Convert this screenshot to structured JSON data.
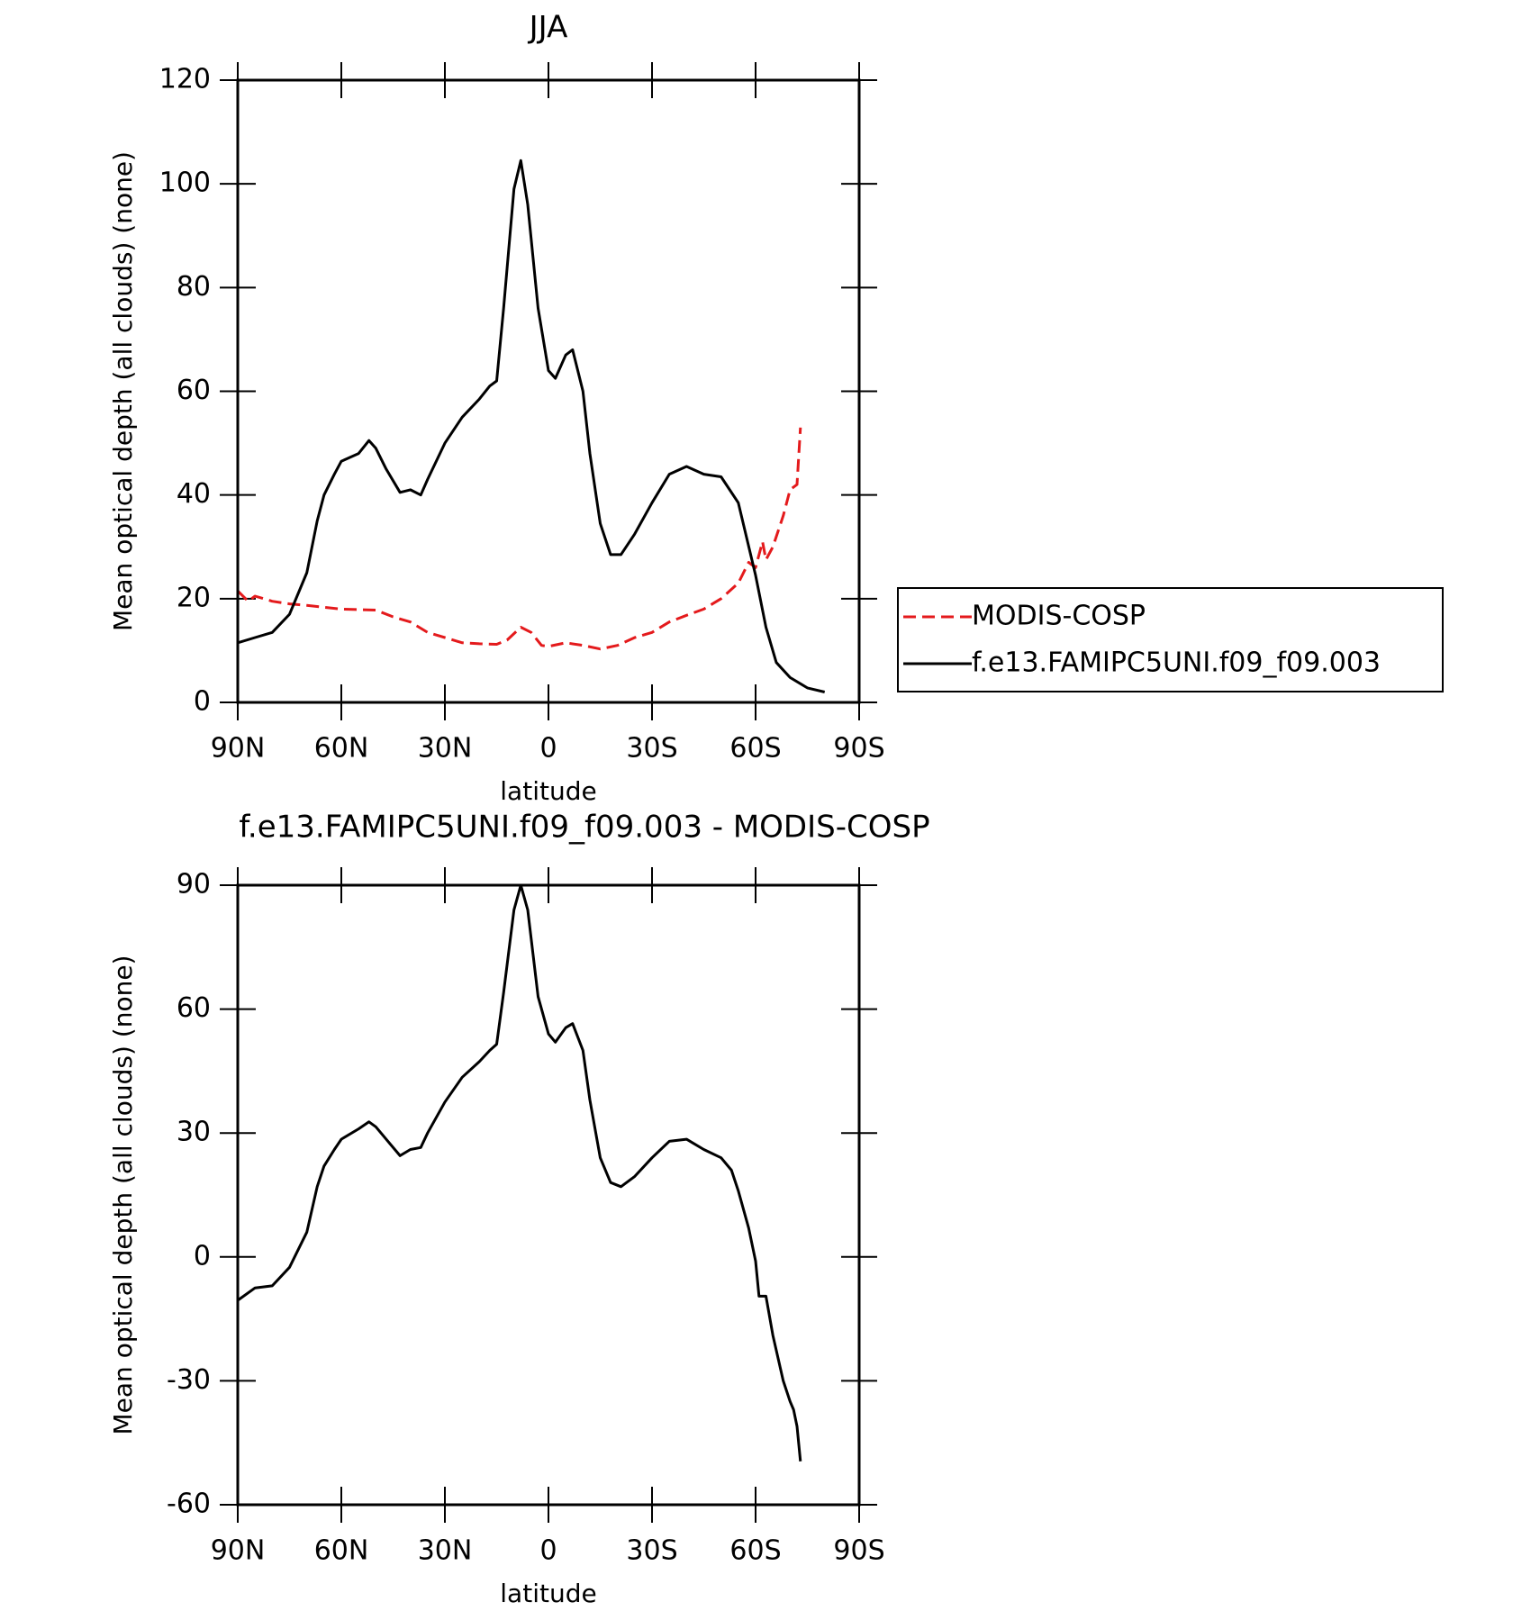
{
  "chart_data": [
    {
      "type": "line",
      "title": "JJA",
      "xlabel": "latitude",
      "ylabel": "Mean optical depth (all clouds) (none)",
      "xlim": [
        90,
        -90
      ],
      "xticks": [
        {
          "value": 90,
          "label": "90N"
        },
        {
          "value": 60,
          "label": "60N"
        },
        {
          "value": 30,
          "label": "30N"
        },
        0,
        {
          "value": -30,
          "label": "30S"
        },
        {
          "value": -60,
          "label": "60S"
        },
        {
          "value": -90,
          "label": "90S"
        }
      ],
      "ylim": [
        0,
        120
      ],
      "yticks": [
        0,
        20,
        40,
        60,
        80,
        100,
        120
      ],
      "legend": "right",
      "series": [
        {
          "name": "MODIS-COSP",
          "color": "#e41a1c",
          "linestyle": "dashed",
          "x": [
            90,
            87,
            85,
            80,
            75,
            70,
            60,
            50,
            45,
            40,
            35,
            30,
            25,
            20,
            15,
            12,
            8,
            5,
            2,
            0,
            -5,
            -10,
            -15,
            -20,
            -25,
            -30,
            -35,
            -40,
            -45,
            -50,
            -55,
            -58,
            -60,
            -62,
            -63,
            -65,
            -68,
            -70,
            -72,
            -73
          ],
          "values": [
            21.5,
            19.5,
            20.5,
            19.5,
            19,
            18.7,
            18,
            17.8,
            16.5,
            15.5,
            13.5,
            12.5,
            11.5,
            11.3,
            11.2,
            12,
            14.5,
            13.5,
            11,
            10.8,
            11.5,
            11,
            10.3,
            11,
            12.5,
            13.5,
            15.5,
            16.8,
            18,
            20,
            23,
            27,
            26,
            31,
            27.5,
            30,
            36,
            41,
            42,
            53
          ]
        },
        {
          "name": "f.e13.FAMIPC5UNI.f09_f09.003",
          "color": "#000000",
          "linestyle": "solid",
          "x": [
            90,
            85,
            80,
            75,
            70,
            67,
            65,
            62,
            60,
            55,
            52,
            50,
            47,
            43,
            40,
            37,
            35,
            30,
            25,
            20,
            17,
            15,
            13,
            10,
            8,
            6,
            3,
            0,
            -2,
            -5,
            -7,
            -10,
            -12,
            -15,
            -18,
            -21,
            -25,
            -30,
            -35,
            -40,
            -45,
            -50,
            -55,
            -60,
            -63,
            -66,
            -70,
            -75,
            -80
          ],
          "values": [
            11.5,
            12.5,
            13.5,
            17,
            25,
            35,
            40,
            44,
            46.5,
            48,
            50.5,
            49,
            45,
            40.5,
            41,
            40,
            43,
            50,
            55,
            58.5,
            61,
            62,
            76,
            99,
            104.5,
            96,
            76,
            64,
            62.5,
            67,
            68,
            60,
            48,
            34.5,
            28.5,
            28.5,
            32.5,
            38.5,
            44,
            45.5,
            44,
            43.5,
            38.5,
            24.5,
            14.5,
            7.7,
            4.8,
            2.8,
            2
          ]
        }
      ]
    },
    {
      "type": "line",
      "title": "f.e13.FAMIPC5UNI.f09_f09.003 - MODIS-COSP",
      "xlabel": "latitude",
      "ylabel": "Mean optical depth (all clouds) (none)",
      "xlim": [
        90,
        -90
      ],
      "xticks": [
        {
          "value": 90,
          "label": "90N"
        },
        {
          "value": 60,
          "label": "60N"
        },
        {
          "value": 30,
          "label": "30N"
        },
        0,
        {
          "value": -30,
          "label": "30S"
        },
        {
          "value": -60,
          "label": "60S"
        },
        {
          "value": -90,
          "label": "90S"
        }
      ],
      "ylim": [
        -60,
        90
      ],
      "yticks": [
        -60,
        -30,
        0,
        30,
        60,
        90
      ],
      "series": [
        {
          "color": "#000000",
          "linestyle": "solid",
          "x": [
            90,
            85,
            80,
            75,
            70,
            67,
            65,
            62,
            60,
            55,
            52,
            50,
            47,
            43,
            40,
            37,
            35,
            30,
            25,
            20,
            17,
            15,
            13,
            10,
            8,
            6,
            3,
            0,
            -2,
            -5,
            -7,
            -10,
            -12,
            -15,
            -18,
            -21,
            -25,
            -30,
            -35,
            -40,
            -45,
            -50,
            -53,
            -55,
            -58,
            -60,
            -61,
            -63,
            -65,
            -68,
            -70,
            -71,
            -72,
            -73
          ],
          "values": [
            -10.5,
            -7.5,
            -7,
            -2.5,
            6,
            17,
            22,
            26,
            28.5,
            31,
            32.7,
            31.5,
            28.5,
            24.5,
            26,
            26.5,
            30,
            37.5,
            43.5,
            47.3,
            50,
            51.5,
            64,
            84,
            90,
            84,
            63,
            54,
            52,
            55.5,
            56.5,
            50,
            38,
            24,
            18,
            17,
            19.5,
            24,
            28,
            28.5,
            26,
            24,
            21,
            16,
            7,
            -1,
            -9.5,
            -9.5,
            -19,
            -30,
            -35,
            -37,
            -41,
            -49.5
          ]
        }
      ]
    }
  ]
}
